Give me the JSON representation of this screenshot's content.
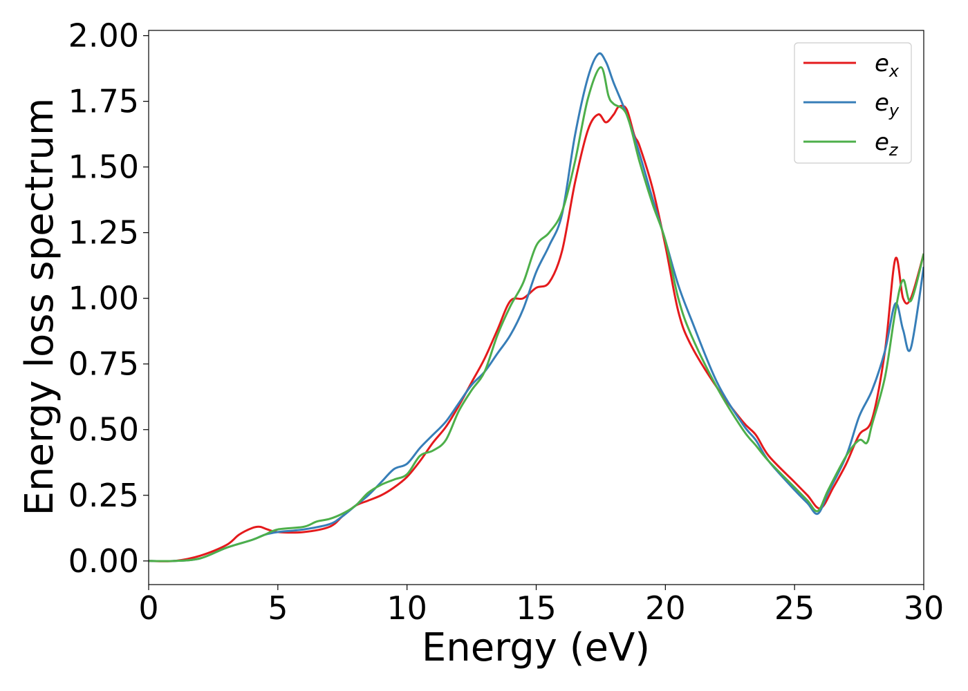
{
  "chart_data": {
    "type": "line",
    "title": "",
    "xlabel": "Energy (eV)",
    "ylabel": "Energy loss spectrum",
    "xlim": [
      0,
      30
    ],
    "ylim": [
      -0.09,
      2.02
    ],
    "xticks": [
      0,
      5,
      10,
      15,
      20,
      25,
      30
    ],
    "xtick_labels": [
      "0",
      "5",
      "10",
      "15",
      "20",
      "25",
      "30"
    ],
    "yticks": [
      0,
      0.25,
      0.5,
      0.75,
      1.0,
      1.25,
      1.5,
      1.75,
      2.0
    ],
    "ytick_labels": [
      "0.00",
      "0.25",
      "0.50",
      "0.75",
      "1.00",
      "1.25",
      "1.50",
      "1.75",
      "2.00"
    ],
    "grid": false,
    "legend_position": "top-right",
    "series": [
      {
        "name": "e",
        "subscript": "x",
        "color": "#e41a1c",
        "x": [
          0,
          1,
          2,
          3,
          3.5,
          4,
          4.3,
          4.6,
          5,
          6,
          7,
          7.5,
          8,
          8.5,
          9,
          9.5,
          10,
          10.5,
          11,
          11.5,
          12,
          12.5,
          13,
          13.5,
          14,
          14.5,
          15,
          15.5,
          16,
          16.5,
          17,
          17.4,
          17.7,
          18,
          18.2,
          18.5,
          18.8,
          19,
          19.5,
          20,
          20.5,
          21,
          22,
          23,
          23.5,
          24,
          25,
          25.5,
          26,
          26.5,
          27,
          27.5,
          28,
          28.5,
          28.9,
          29.2,
          29.5,
          30
        ],
        "values": [
          0,
          0,
          0.02,
          0.06,
          0.1,
          0.125,
          0.13,
          0.12,
          0.11,
          0.11,
          0.13,
          0.17,
          0.21,
          0.23,
          0.25,
          0.28,
          0.32,
          0.38,
          0.45,
          0.51,
          0.59,
          0.68,
          0.77,
          0.88,
          0.99,
          1.0,
          1.04,
          1.06,
          1.18,
          1.44,
          1.64,
          1.7,
          1.67,
          1.7,
          1.73,
          1.72,
          1.62,
          1.58,
          1.42,
          1.2,
          0.95,
          0.82,
          0.66,
          0.53,
          0.48,
          0.4,
          0.3,
          0.25,
          0.2,
          0.28,
          0.37,
          0.48,
          0.54,
          0.8,
          1.15,
          1.0,
          1.0,
          1.17
        ]
      },
      {
        "name": "e",
        "subscript": "y",
        "color": "#377eb8",
        "x": [
          0,
          1,
          2,
          3,
          4,
          4.5,
          5,
          6,
          7,
          7.5,
          8,
          8.5,
          9,
          9.5,
          10,
          10.5,
          11,
          11.5,
          12,
          12.5,
          13,
          13.5,
          14,
          14.5,
          15,
          15.5,
          16,
          16.5,
          17,
          17.4,
          17.7,
          18,
          18.5,
          19,
          19.5,
          20,
          20.5,
          21,
          22,
          23,
          23.5,
          24,
          25,
          25.5,
          25.9,
          26.3,
          27,
          27.5,
          28,
          28.5,
          28.9,
          29.2,
          29.5,
          30
        ],
        "values": [
          0,
          0,
          0.01,
          0.05,
          0.08,
          0.1,
          0.11,
          0.12,
          0.14,
          0.17,
          0.21,
          0.25,
          0.3,
          0.35,
          0.37,
          0.43,
          0.48,
          0.53,
          0.6,
          0.67,
          0.72,
          0.79,
          0.86,
          0.96,
          1.1,
          1.2,
          1.32,
          1.62,
          1.84,
          1.93,
          1.9,
          1.82,
          1.7,
          1.55,
          1.38,
          1.22,
          1.05,
          0.92,
          0.68,
          0.52,
          0.46,
          0.38,
          0.27,
          0.22,
          0.18,
          0.26,
          0.4,
          0.55,
          0.65,
          0.8,
          0.98,
          0.88,
          0.81,
          1.12
        ]
      },
      {
        "name": "e",
        "subscript": "z",
        "color": "#4daf4a",
        "x": [
          0,
          1,
          2,
          3,
          4,
          4.5,
          5,
          6,
          6.5,
          7,
          7.5,
          8,
          8.5,
          9,
          9.5,
          10,
          10.5,
          11,
          11.5,
          12,
          12.5,
          13,
          13.5,
          14,
          14.5,
          15,
          15.5,
          16,
          16.5,
          17,
          17.5,
          17.8,
          18,
          18.5,
          19,
          19.5,
          20,
          20.5,
          21,
          22,
          23,
          23.5,
          24,
          25,
          25.5,
          25.9,
          26.3,
          27,
          27.5,
          27.8,
          28,
          28.5,
          28.9,
          29.2,
          29.5,
          30
        ],
        "values": [
          0,
          0,
          0.01,
          0.05,
          0.08,
          0.1,
          0.12,
          0.13,
          0.15,
          0.16,
          0.18,
          0.21,
          0.26,
          0.29,
          0.31,
          0.33,
          0.4,
          0.42,
          0.46,
          0.57,
          0.65,
          0.72,
          0.86,
          0.97,
          1.06,
          1.2,
          1.25,
          1.33,
          1.52,
          1.76,
          1.88,
          1.77,
          1.74,
          1.7,
          1.52,
          1.36,
          1.22,
          1.0,
          0.86,
          0.66,
          0.5,
          0.44,
          0.38,
          0.28,
          0.23,
          0.19,
          0.27,
          0.4,
          0.46,
          0.45,
          0.52,
          0.7,
          0.95,
          1.07,
          0.99,
          1.17
        ]
      }
    ]
  }
}
